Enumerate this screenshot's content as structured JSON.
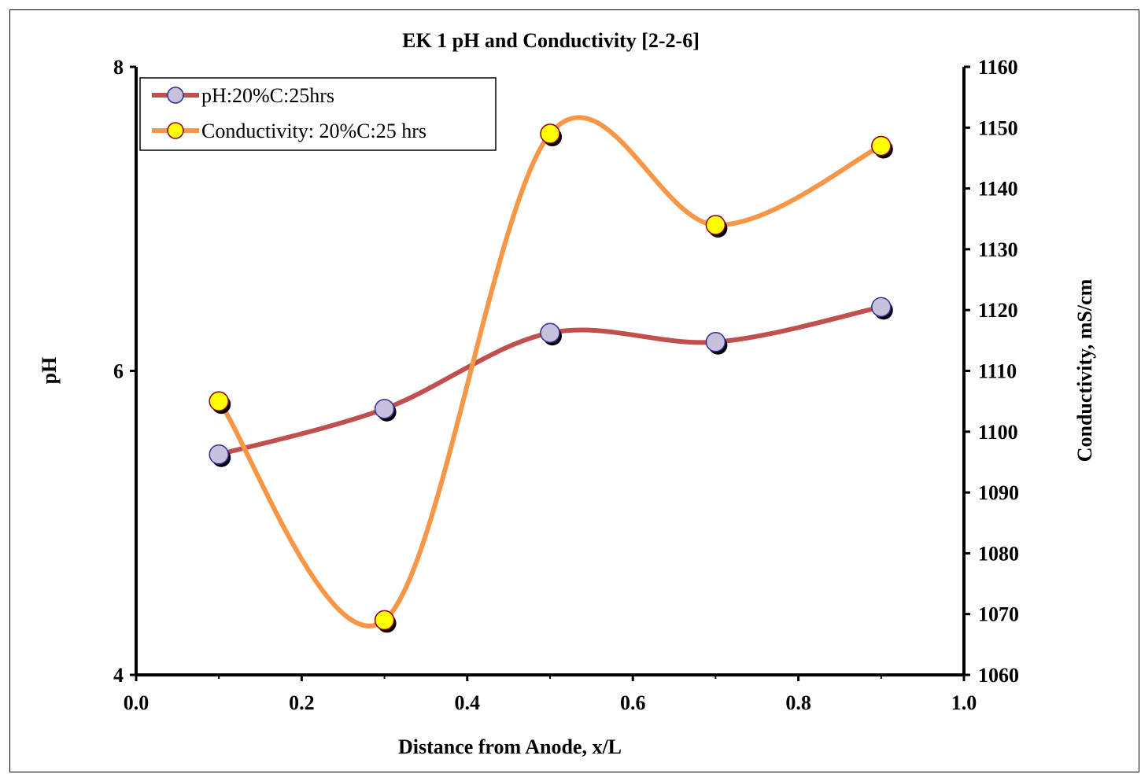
{
  "chart_data": {
    "type": "line",
    "title": "EK 1 pH and Conductivity [2-2-6]",
    "xlabel": "Distance from Anode, x/L",
    "ylabel": "pH",
    "y2label": "Conductivity, mS/cm",
    "xlim": [
      0.0,
      1.0
    ],
    "ylim": [
      4,
      8
    ],
    "y2lim": [
      1060,
      1160
    ],
    "x_ticks": [
      "0.0",
      "0.2",
      "0.4",
      "0.6",
      "0.8",
      "1.0"
    ],
    "y_ticks": [
      "4",
      "6",
      "8"
    ],
    "y2_ticks": [
      "1060",
      "1070",
      "1080",
      "1090",
      "1100",
      "1110",
      "1120",
      "1130",
      "1140",
      "1150",
      "1160"
    ],
    "grid": false,
    "legend_position": "top-left",
    "series": [
      {
        "name": "pH:20%C:25hrs",
        "axis": "left",
        "line_color": "#c0504d",
        "marker_color": "#c8c0dc",
        "marker_edge": "#2e3192",
        "x": [
          0.1,
          0.3,
          0.5,
          0.7,
          0.9
        ],
        "values": [
          5.45,
          5.75,
          6.25,
          6.19,
          6.42
        ]
      },
      {
        "name": "Conductivity: 20%C:25 hrs",
        "axis": "right",
        "line_color": "#f79646",
        "marker_color": "#ffff00",
        "marker_edge": "#8b0000",
        "x": [
          0.1,
          0.3,
          0.5,
          0.7,
          0.9
        ],
        "values": [
          1105,
          1069,
          1149,
          1134,
          1147
        ]
      }
    ]
  }
}
